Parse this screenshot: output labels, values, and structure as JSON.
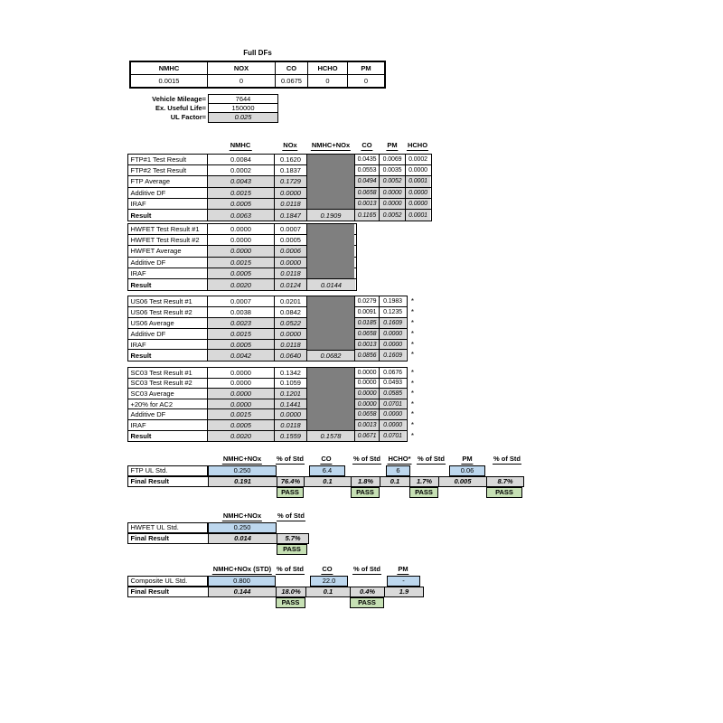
{
  "colors": {
    "input_blue": "#bdd7ee",
    "calc_gray": "#d9d9d9",
    "blocked_gray": "#7f7f7f",
    "pass_green": "#c6e0b4",
    "border": "#000000"
  },
  "full_dfs": {
    "title": "Full DFs",
    "headers": [
      "NMHC",
      "NOX",
      "CO",
      "HCHO",
      "PM"
    ],
    "values": [
      "0.0015",
      "0",
      "0.0675",
      "0",
      "0"
    ]
  },
  "vehicle_info": [
    {
      "label": "Vehicle Mileage=",
      "value": "7644"
    },
    {
      "label": "Ex. Useful Life=",
      "value": "150000"
    },
    {
      "label": "UL Factor=",
      "value": "0.025"
    }
  ],
  "main_headers": [
    "NMHC",
    "NOx",
    "NMHC+NOx",
    "CO",
    "PM",
    "HCHO"
  ],
  "test_tables": [
    {
      "name": "FTP",
      "rows": [
        {
          "label": "FTP#1 Test Result",
          "calc": false,
          "bold": false,
          "cells": {
            "nmhc": "0.0084",
            "nox": "0.1620",
            "co": "0.0435",
            "pm": "0.0069",
            "hcho": "0.0002"
          }
        },
        {
          "label": "FTP#2 Test Result",
          "calc": false,
          "bold": false,
          "cells": {
            "nmhc": "0.0002",
            "nox": "0.1837",
            "co": "0.0553",
            "pm": "0.0035",
            "hcho": "0.0000"
          }
        },
        {
          "label": "FTP Average",
          "calc": true,
          "bold": false,
          "cells": {
            "nmhc": "0.0043",
            "nox": "0.1729",
            "co": "0.0494",
            "pm": "0.0052",
            "hcho": "0.0001"
          }
        },
        {
          "label": "Additive DF",
          "calc": true,
          "bold": false,
          "cells": {
            "nmhc": "0.0015",
            "nox": "0.0000",
            "co": "0.0658",
            "pm": "0.0000",
            "hcho": "0.0000"
          }
        },
        {
          "label": "IRAF",
          "calc": true,
          "bold": false,
          "cells": {
            "nmhc": "0.0005",
            "nox": "0.0118",
            "co": "0.0013",
            "pm": "0.0000",
            "hcho": "0.0000"
          }
        },
        {
          "label": "Result",
          "calc": true,
          "bold": true,
          "cells": {
            "nmhc": "0.0063",
            "nox": "0.1847",
            "nmhc_nox": "0.1909",
            "co": "0.1165",
            "pm": "0.0052",
            "hcho": "0.0001"
          }
        }
      ]
    },
    {
      "name": "HWFET",
      "rows": [
        {
          "label": "HWFET Test Result #1",
          "calc": false,
          "bold": false,
          "cells": {
            "nmhc": "0.0000",
            "nox": "0.0007"
          }
        },
        {
          "label": "HWFET Test Result #2",
          "calc": false,
          "bold": false,
          "cells": {
            "nmhc": "0.0000",
            "nox": "0.0005"
          }
        },
        {
          "label": "HWFET Average",
          "calc": true,
          "bold": false,
          "cells": {
            "nmhc": "0.0000",
            "nox": "0.0006"
          }
        },
        {
          "label": "Additive DF",
          "calc": true,
          "bold": false,
          "cells": {
            "nmhc": "0.0015",
            "nox": "0.0000"
          }
        },
        {
          "label": "IRAF",
          "calc": true,
          "bold": false,
          "cells": {
            "nmhc": "0.0005",
            "nox": "0.0118"
          }
        },
        {
          "label": "Result",
          "calc": true,
          "bold": true,
          "cells": {
            "nmhc": "0.0020",
            "nox": "0.0124",
            "nmhc_nox": "0.0144"
          }
        }
      ]
    },
    {
      "name": "US06",
      "star": "*",
      "rows": [
        {
          "label": "US06 Test Result #1",
          "calc": false,
          "bold": false,
          "cells": {
            "nmhc": "0.0007",
            "nox": "0.0201",
            "co": "0.0279",
            "pm": "0.1983"
          }
        },
        {
          "label": "US06 Test Result #2",
          "calc": false,
          "bold": false,
          "cells": {
            "nmhc": "0.0038",
            "nox": "0.0842",
            "co": "0.0091",
            "pm": "0.1235"
          }
        },
        {
          "label": "US06 Average",
          "calc": true,
          "bold": false,
          "cells": {
            "nmhc": "0.0023",
            "nox": "0.0522",
            "co": "0.0185",
            "pm": "0.1609"
          }
        },
        {
          "label": "Additive DF",
          "calc": true,
          "bold": false,
          "cells": {
            "nmhc": "0.0015",
            "nox": "0.0000",
            "co": "0.0658",
            "pm": "0.0000"
          }
        },
        {
          "label": "IRAF",
          "calc": true,
          "bold": false,
          "cells": {
            "nmhc": "0.0005",
            "nox": "0.0118",
            "co": "0.0013",
            "pm": "0.0000"
          }
        },
        {
          "label": "Result",
          "calc": true,
          "bold": true,
          "cells": {
            "nmhc": "0.0042",
            "nox": "0.0640",
            "nmhc_nox": "0.0682",
            "co": "0.0856",
            "pm": "0.1609"
          }
        }
      ]
    },
    {
      "name": "SC03",
      "star": "*",
      "rows": [
        {
          "label": "SC03 Test Result #1",
          "calc": false,
          "bold": false,
          "cells": {
            "nmhc": "0.0000",
            "nox": "0.1342",
            "co": "0.0000",
            "pm": "0.0676"
          }
        },
        {
          "label": "SC03 Test Result #2",
          "calc": false,
          "bold": false,
          "cells": {
            "nmhc": "0.0000",
            "nox": "0.1059",
            "co": "0.0000",
            "pm": "0.0493"
          }
        },
        {
          "label": "SC03 Average",
          "calc": true,
          "bold": false,
          "cells": {
            "nmhc": "0.0000",
            "nox": "0.1201",
            "co": "0.0000",
            "pm": "0.0585"
          }
        },
        {
          "label": "+20% for AC2",
          "calc": true,
          "bold": false,
          "cells": {
            "nmhc": "0.0000",
            "nox": "0.1441",
            "co": "0.0000",
            "pm": "0.0701"
          }
        },
        {
          "label": "Additive DF",
          "calc": true,
          "bold": false,
          "cells": {
            "nmhc": "0.0015",
            "nox": "0.0000",
            "co": "0.0658",
            "pm": "0.0000"
          }
        },
        {
          "label": "IRAF",
          "calc": true,
          "bold": false,
          "cells": {
            "nmhc": "0.0005",
            "nox": "0.0118",
            "co": "0.0013",
            "pm": "0.0000"
          }
        },
        {
          "label": "Result",
          "calc": true,
          "bold": true,
          "cells": {
            "nmhc": "0.0020",
            "nox": "0.1559",
            "nmhc_nox": "0.1578",
            "co": "0.0671",
            "pm": "0.0701"
          }
        }
      ]
    }
  ],
  "summaries": [
    {
      "name": "FTP UL Std.",
      "final_label": "Final Result",
      "pass_label": "PASS",
      "headers": [
        "NMHC+NOx",
        "% of Std",
        "CO",
        "% of Std",
        "HCHO*",
        "% of Std",
        "PM",
        "% of Std"
      ],
      "ul_values": [
        "0.250",
        "6.4",
        "6",
        "0.06"
      ],
      "final_values": [
        "0.191",
        "76.4%",
        "0.1",
        "1.8%",
        "0.1",
        "1.7%",
        "0.005",
        "8.7%"
      ]
    },
    {
      "name": "HWFET UL Std.",
      "final_label": "Final Result",
      "pass_label": "PASS",
      "headers": [
        "NMHC+NOx",
        "% of Std"
      ],
      "ul_values": [
        "0.250"
      ],
      "final_values": [
        "0.014",
        "5.7%"
      ]
    },
    {
      "name": "Composite UL Std.",
      "final_label": "Final Result",
      "pass_label": "PASS",
      "headers": [
        "NMHC+NOx (STD)",
        "% of Std",
        "CO",
        "% of Std",
        "PM"
      ],
      "ul_values": [
        "0.800",
        "22.0",
        "-"
      ],
      "final_values": [
        "0.144",
        "18.0%",
        "0.1",
        "0.4%",
        "1.9"
      ]
    }
  ]
}
